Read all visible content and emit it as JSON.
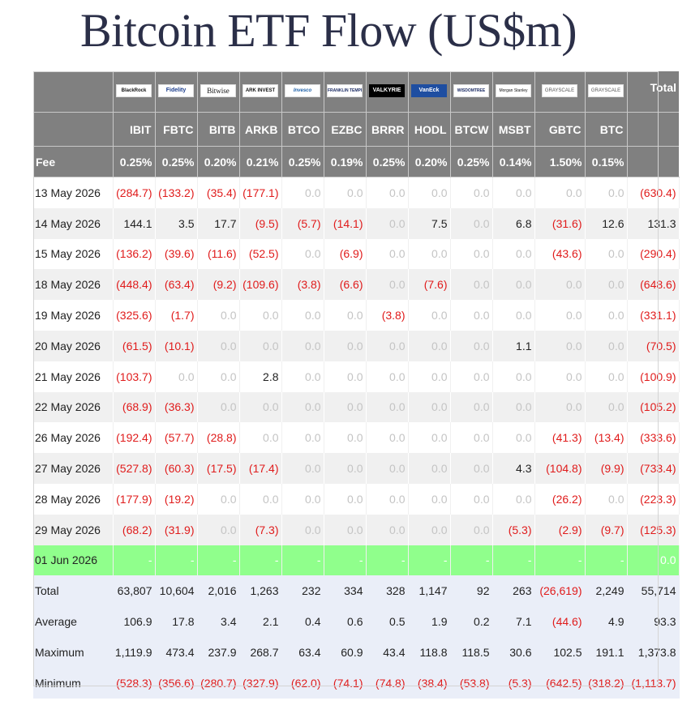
{
  "title": "Bitcoin ETF Flow (US$m)",
  "colors": {
    "header_bg": "#808080",
    "negative": "#e01b1b",
    "zero": "#c4c4c4",
    "highlight_row": "#90ff8c",
    "stats_bg": "#eaeef8"
  },
  "header": {
    "total_label": "Total",
    "fee_label": "Fee",
    "logos": [
      "BlackRock",
      "Fidelity",
      "Bitwise",
      "ARK INVEST",
      "Invesco",
      "FRANKLIN TEMPLETON",
      "VALKYRIE",
      "VanEck",
      "WISDOMTREE",
      "Morgan Stanley",
      "GRAYSCALE",
      "GRAYSCALE"
    ],
    "tickers": [
      "IBIT",
      "FBTC",
      "BITB",
      "ARKB",
      "BTCO",
      "EZBC",
      "BRRR",
      "HODL",
      "BTCW",
      "MSBT",
      "GBTC",
      "BTC"
    ],
    "fees": [
      "0.25%",
      "0.25%",
      "0.20%",
      "0.21%",
      "0.25%",
      "0.19%",
      "0.25%",
      "0.20%",
      "0.25%",
      "0.14%",
      "1.50%",
      "0.15%"
    ]
  },
  "rows": [
    {
      "date": "13 May 2026",
      "values": [
        "(284.7)",
        "(133.2)",
        "(35.4)",
        "(177.1)",
        "0.0",
        "0.0",
        "0.0",
        "0.0",
        "0.0",
        "0.0",
        "0.0",
        "0.0"
      ],
      "total": "(630.4)"
    },
    {
      "date": "14 May 2026",
      "values": [
        "144.1",
        "3.5",
        "17.7",
        "(9.5)",
        "(5.7)",
        "(14.1)",
        "0.0",
        "7.5",
        "0.0",
        "6.8",
        "(31.6)",
        "12.6"
      ],
      "total": "131.3"
    },
    {
      "date": "15 May 2026",
      "values": [
        "(136.2)",
        "(39.6)",
        "(11.6)",
        "(52.5)",
        "0.0",
        "(6.9)",
        "0.0",
        "0.0",
        "0.0",
        "0.0",
        "(43.6)",
        "0.0"
      ],
      "total": "(290.4)"
    },
    {
      "date": "18 May 2026",
      "values": [
        "(448.4)",
        "(63.4)",
        "(9.2)",
        "(109.6)",
        "(3.8)",
        "(6.6)",
        "0.0",
        "(7.6)",
        "0.0",
        "0.0",
        "0.0",
        "0.0"
      ],
      "total": "(648.6)"
    },
    {
      "date": "19 May 2026",
      "values": [
        "(325.6)",
        "(1.7)",
        "0.0",
        "0.0",
        "0.0",
        "0.0",
        "(3.8)",
        "0.0",
        "0.0",
        "0.0",
        "0.0",
        "0.0"
      ],
      "total": "(331.1)"
    },
    {
      "date": "20 May 2026",
      "values": [
        "(61.5)",
        "(10.1)",
        "0.0",
        "0.0",
        "0.0",
        "0.0",
        "0.0",
        "0.0",
        "0.0",
        "1.1",
        "0.0",
        "0.0"
      ],
      "total": "(70.5)"
    },
    {
      "date": "21 May 2026",
      "values": [
        "(103.7)",
        "0.0",
        "0.0",
        "2.8",
        "0.0",
        "0.0",
        "0.0",
        "0.0",
        "0.0",
        "0.0",
        "0.0",
        "0.0"
      ],
      "total": "(100.9)"
    },
    {
      "date": "22 May 2026",
      "values": [
        "(68.9)",
        "(36.3)",
        "0.0",
        "0.0",
        "0.0",
        "0.0",
        "0.0",
        "0.0",
        "0.0",
        "0.0",
        "0.0",
        "0.0"
      ],
      "total": "(105.2)"
    },
    {
      "date": "26 May 2026",
      "values": [
        "(192.4)",
        "(57.7)",
        "(28.8)",
        "0.0",
        "0.0",
        "0.0",
        "0.0",
        "0.0",
        "0.0",
        "0.0",
        "(41.3)",
        "(13.4)"
      ],
      "total": "(333.6)"
    },
    {
      "date": "27 May 2026",
      "values": [
        "(527.8)",
        "(60.3)",
        "(17.5)",
        "(17.4)",
        "0.0",
        "0.0",
        "0.0",
        "0.0",
        "0.0",
        "4.3",
        "(104.8)",
        "(9.9)"
      ],
      "total": "(733.4)"
    },
    {
      "date": "28 May 2026",
      "values": [
        "(177.9)",
        "(19.2)",
        "0.0",
        "0.0",
        "0.0",
        "0.0",
        "0.0",
        "0.0",
        "0.0",
        "0.0",
        "(26.2)",
        "0.0"
      ],
      "total": "(223.3)"
    },
    {
      "date": "29 May 2026",
      "values": [
        "(68.2)",
        "(31.9)",
        "0.0",
        "(7.3)",
        "0.0",
        "0.0",
        "0.0",
        "0.0",
        "0.0",
        "(5.3)",
        "(2.9)",
        "(9.7)"
      ],
      "total": "(125.3)"
    },
    {
      "date": "01 Jun 2026",
      "values": [
        "-",
        "-",
        "-",
        "-",
        "-",
        "-",
        "-",
        "-",
        "-",
        "-",
        "-",
        "-"
      ],
      "total": "0.0",
      "highlight": true
    }
  ],
  "stats": [
    {
      "label": "Total",
      "values": [
        "63,807",
        "10,604",
        "2,016",
        "1,263",
        "232",
        "334",
        "328",
        "1,147",
        "92",
        "263",
        "(26,619)",
        "2,249"
      ],
      "total": "55,714"
    },
    {
      "label": "Average",
      "values": [
        "106.9",
        "17.8",
        "3.4",
        "2.1",
        "0.4",
        "0.6",
        "0.5",
        "1.9",
        "0.2",
        "7.1",
        "(44.6)",
        "4.9"
      ],
      "total": "93.3"
    },
    {
      "label": "Maximum",
      "values": [
        "1,119.9",
        "473.4",
        "237.9",
        "268.7",
        "63.4",
        "60.9",
        "43.4",
        "118.8",
        "118.5",
        "30.6",
        "102.5",
        "191.1"
      ],
      "total": "1,373.8"
    },
    {
      "label": "Minimum",
      "values": [
        "(528.3)",
        "(356.6)",
        "(280.7)",
        "(327.9)",
        "(62.0)",
        "(74.1)",
        "(74.8)",
        "(38.4)",
        "(53.8)",
        "(5.3)",
        "(642.5)",
        "(318.2)"
      ],
      "total": "(1,113.7)"
    }
  ]
}
